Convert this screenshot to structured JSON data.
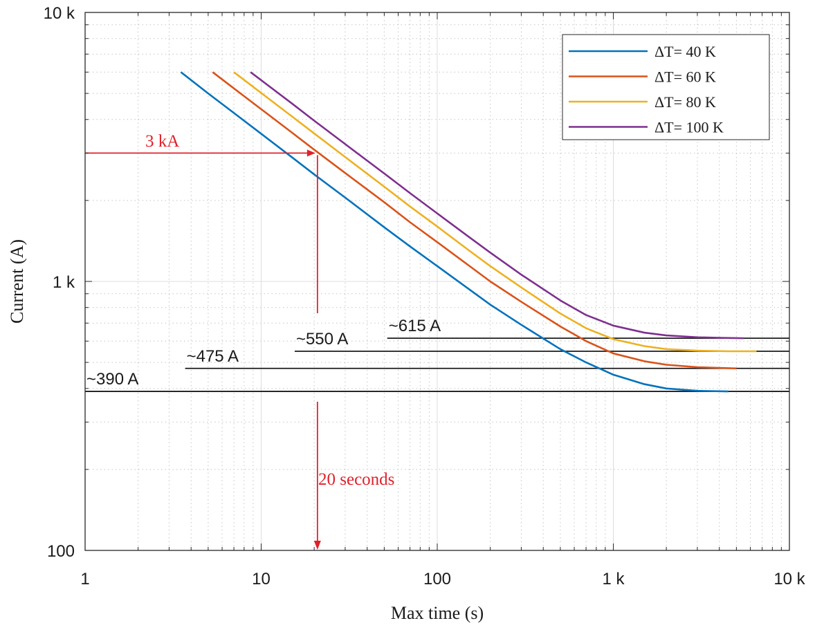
{
  "chart_data": {
    "type": "line",
    "xscale": "log",
    "yscale": "log",
    "xlabel": "Max time (s)",
    "ylabel": "Current (A)",
    "xlim": [
      1,
      10000
    ],
    "ylim": [
      100,
      10000
    ],
    "grid": "major and minor",
    "legend_position": "top-right",
    "xticks": [
      {
        "value": 1,
        "label": "1"
      },
      {
        "value": 10,
        "label": "10"
      },
      {
        "value": 100,
        "label": "100"
      },
      {
        "value": 1000,
        "label": "1 k"
      },
      {
        "value": 10000,
        "label": "10 k"
      }
    ],
    "yticks": [
      {
        "value": 100,
        "label": "100"
      },
      {
        "value": 1000,
        "label": "1 k"
      },
      {
        "value": 10000,
        "label": "10 k"
      }
    ],
    "series": [
      {
        "name": "ΔT= 40 K",
        "color": "#0072BD",
        "x": [
          3.5,
          5,
          7,
          10,
          15,
          20,
          30,
          50,
          70,
          100,
          150,
          200,
          300,
          500,
          700,
          1000,
          1500,
          2000,
          3000,
          4500
        ],
        "y": [
          6000,
          5000,
          4230,
          3540,
          2890,
          2500,
          2050,
          1590,
          1350,
          1140,
          940,
          820,
          690,
          560,
          500,
          450,
          415,
          400,
          392,
          390
        ]
      },
      {
        "name": "ΔT= 60 K",
        "color": "#D95319",
        "x": [
          5.3,
          7,
          10,
          15,
          20,
          30,
          50,
          70,
          100,
          150,
          200,
          300,
          500,
          700,
          1000,
          1500,
          2000,
          3000,
          5000
        ],
        "y": [
          6000,
          5220,
          4370,
          3570,
          3090,
          2530,
          1970,
          1660,
          1400,
          1150,
          1000,
          840,
          680,
          600,
          540,
          505,
          490,
          480,
          475
        ]
      },
      {
        "name": "ΔT= 80 K",
        "color": "#EDB120",
        "x": [
          7,
          10,
          15,
          20,
          30,
          50,
          70,
          100,
          150,
          200,
          300,
          500,
          700,
          1000,
          1500,
          2000,
          3000,
          4500,
          6500
        ],
        "y": [
          6000,
          5020,
          4100,
          3550,
          2900,
          2250,
          1900,
          1600,
          1310,
          1140,
          950,
          760,
          670,
          610,
          575,
          560,
          553,
          550,
          550
        ]
      },
      {
        "name": "ΔT= 100 K",
        "color": "#7E2F8E",
        "x": [
          8.7,
          10,
          15,
          20,
          30,
          50,
          70,
          100,
          150,
          200,
          300,
          500,
          700,
          1000,
          1500,
          2000,
          3000,
          4000,
          5500
        ],
        "y": [
          6000,
          5600,
          4580,
          3960,
          3240,
          2520,
          2130,
          1790,
          1470,
          1280,
          1060,
          850,
          750,
          685,
          645,
          630,
          620,
          617,
          615
        ]
      }
    ],
    "reference_lines": [
      {
        "label": "~390 A",
        "y": 390,
        "x_from": 1,
        "x_to": 10000
      },
      {
        "label": "~475 A",
        "y": 475,
        "x_from": 3.7,
        "x_to": 10000
      },
      {
        "label": "~550 A",
        "y": 550,
        "x_from": 15.5,
        "x_to": 10000
      },
      {
        "label": "~615 A",
        "y": 615,
        "x_from": 52,
        "x_to": 10000
      }
    ],
    "annotations": {
      "current_label": "3 kA",
      "current_value": 3000,
      "time_label": "20 seconds",
      "time_value": 20.5,
      "color": "#e0202a"
    }
  }
}
